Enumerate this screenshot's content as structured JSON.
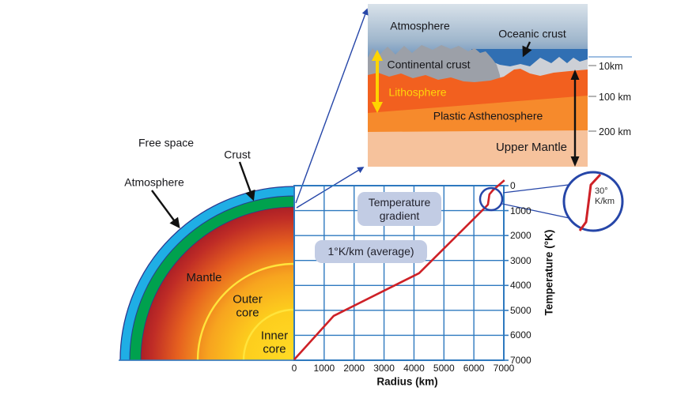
{
  "figure_title": "Earth interior and temperature gradient diagram",
  "earth_quadrant": {
    "free_space_label": "Free space",
    "atmosphere_label": "Atmosphere",
    "crust_label": "Crust",
    "mantle_label": "Mantle",
    "outer_core_line1": "Outer",
    "outer_core_line2": "core",
    "inner_core_line1": "Inner",
    "inner_core_line2": "core",
    "colors": {
      "atmosphere": "#1faee5",
      "crust": "#00a14e",
      "mantle_outer": "#ac2026",
      "inner_core": "#ffd81f",
      "core_boundary_arcs": "#ffe43c"
    }
  },
  "cross_section_panel": {
    "atmosphere_label": "Atmosphere",
    "oceanic_crust_label": "Oceanic crust",
    "continental_crust_label": "Continental crust",
    "lithosphere_label": "Lithosphere",
    "plastic_asthenosphere_label": "Plastic Asthenosphere",
    "upper_mantle_label": "Upper Mantle",
    "depth_markers": [
      "10km",
      "100 km",
      "200 km"
    ],
    "colors": {
      "sea": "#306fb3",
      "continental_crust": "#9ca0a8",
      "oceanic_crust": "#cdd0d6",
      "lithosphere": "#f2601f",
      "asthenosphere": "#f68a2c",
      "upper_mantle": "#f6c29c",
      "lithosphere_text": "#ffd50a"
    }
  },
  "chart_data": {
    "type": "line",
    "title": "",
    "xlabel": "Radius (km)",
    "ylabel": "Temperature (°K)",
    "x_ticks": [
      0,
      1000,
      2000,
      3000,
      4000,
      5000,
      6000,
      7000
    ],
    "y_ticks": [
      0,
      1000,
      2000,
      3000,
      4000,
      5000,
      6000,
      7000
    ],
    "xlim": [
      0,
      7000
    ],
    "ylim": [
      0,
      7000
    ],
    "y_axis_inverted": true,
    "grid": true,
    "line_color": "#ce2127",
    "grid_color": "#2e79bf",
    "series": [
      {
        "name": "Temperature gradient",
        "points": [
          [
            0,
            6970
          ],
          [
            1320,
            5220
          ],
          [
            4170,
            3510
          ],
          [
            6365,
            890
          ],
          [
            6470,
            760
          ],
          [
            6520,
            350
          ],
          [
            6630,
            190
          ],
          [
            7020,
            -220
          ]
        ]
      }
    ],
    "annotations": {
      "box1_line1": "Temperature",
      "box1_line2": "gradient",
      "box2": "1°K/km (average)",
      "callout_line1": "30°",
      "callout_line2": "K/km"
    }
  }
}
